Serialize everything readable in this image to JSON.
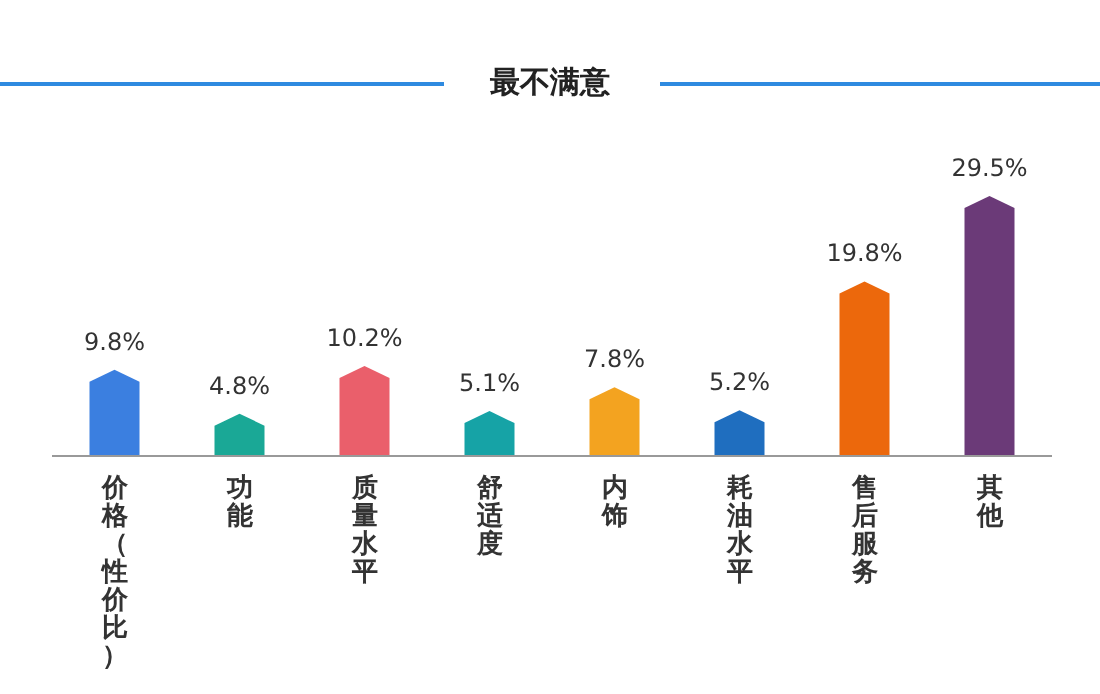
{
  "chart_data": {
    "type": "bar",
    "title": "最不满意",
    "categories": [
      "价格（性价比）",
      "功能",
      "质量水平",
      "舒适度",
      "内饰",
      "耗油水平",
      "售后服务",
      "其他"
    ],
    "values": [
      9.8,
      4.8,
      10.2,
      5.1,
      7.8,
      5.2,
      19.8,
      29.5
    ],
    "colors": [
      "#3b7fe0",
      "#1aa896",
      "#ea5f6b",
      "#16a3a6",
      "#f3a320",
      "#1f6ebf",
      "#ec680c",
      "#6b3a78"
    ],
    "value_labels": [
      "9.8%",
      "4.8%",
      "10.2%",
      "5.1%",
      "7.8%",
      "5.2%",
      "19.8%",
      "29.5%"
    ]
  }
}
